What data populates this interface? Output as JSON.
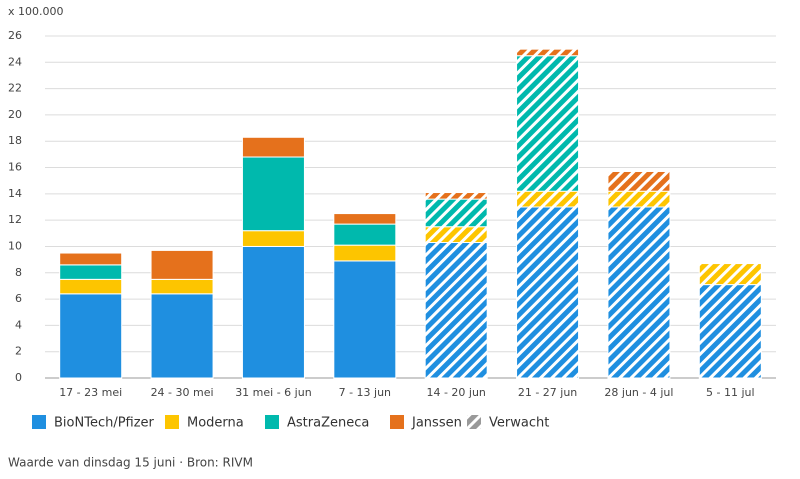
{
  "chart_data": {
    "type": "stacked_bar",
    "y_unit_label": "x 100.000",
    "categories": [
      "17 - 23 mei",
      "24 - 30 mei",
      "31 mei - 6 jun",
      "7 - 13 jun",
      "14 - 20 jun",
      "21 - 27 jun",
      "28 jun - 4 jul",
      "5 - 11 jul"
    ],
    "series": [
      {
        "name": "BioNTech/Pfizer",
        "color": "#1f8fe0",
        "values": [
          6.4,
          6.4,
          10.0,
          8.9,
          10.3,
          13.0,
          13.0,
          7.1
        ]
      },
      {
        "name": "Moderna",
        "color": "#fdc500",
        "values": [
          1.1,
          1.1,
          1.2,
          1.2,
          1.2,
          1.2,
          1.2,
          1.6
        ]
      },
      {
        "name": "AstraZeneca",
        "color": "#00b9ad",
        "values": [
          1.1,
          0,
          5.6,
          1.6,
          2.1,
          10.3,
          0,
          0
        ]
      },
      {
        "name": "Janssen",
        "color": "#e5711c",
        "values": [
          0.9,
          2.2,
          1.5,
          0.8,
          0.5,
          0.5,
          1.5,
          0
        ]
      }
    ],
    "expected": [
      false,
      false,
      false,
      false,
      true,
      true,
      true,
      true
    ],
    "expected_legend": "Verwacht",
    "ylim": [
      0,
      26
    ],
    "yticks": [
      0,
      2,
      4,
      6,
      8,
      10,
      12,
      14,
      16,
      18,
      20,
      22,
      24,
      26
    ],
    "grid": true,
    "footnote": "Waarde van dinsdag 15 juni · Bron: RIVM"
  }
}
